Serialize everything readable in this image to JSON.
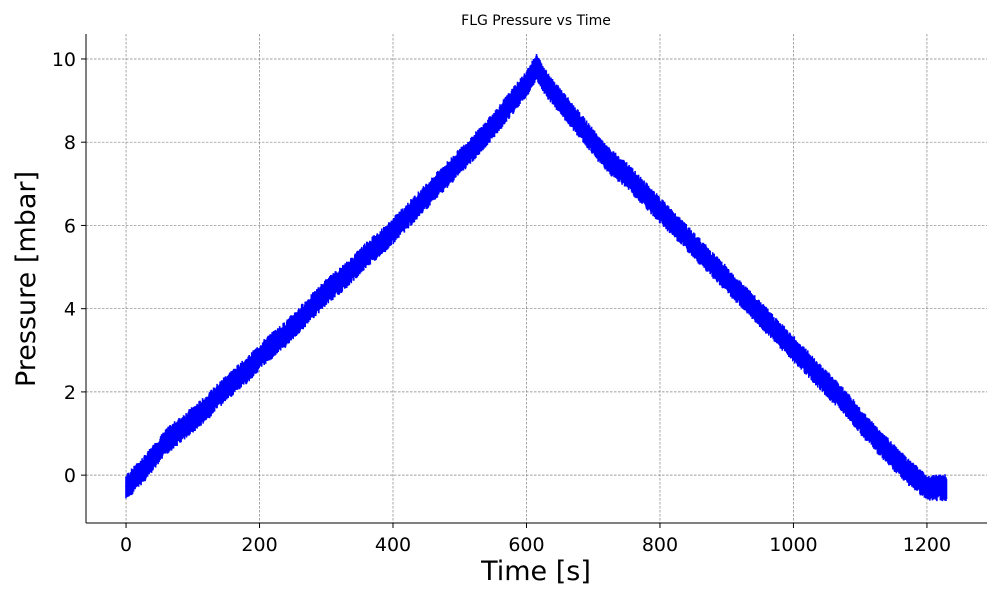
{
  "chart_data": {
    "type": "line",
    "title": "FLG Pressure vs Time",
    "xlabel": "Time [s]",
    "ylabel": "Pressure [mbar]",
    "xlim": [
      -60,
      1290
    ],
    "ylim": [
      -1.15,
      10.6
    ],
    "xticks": [
      0,
      200,
      400,
      600,
      800,
      1000,
      1200
    ],
    "xtick_labels": [
      "0",
      "200",
      "400",
      "600",
      "800",
      "1000",
      "1200"
    ],
    "yticks": [
      0,
      2,
      4,
      6,
      8,
      10
    ],
    "ytick_labels": [
      "0",
      "2",
      "4",
      "6",
      "8",
      "10"
    ],
    "grid": true,
    "legend": "none",
    "series": [
      {
        "color": "#0000ff",
        "x": [
          0,
          30,
          60,
          90,
          120,
          150,
          180,
          210,
          240,
          270,
          300,
          330,
          360,
          390,
          420,
          450,
          480,
          510,
          540,
          570,
          600,
          615,
          630,
          660,
          690,
          720,
          750,
          780,
          810,
          840,
          870,
          900,
          930,
          960,
          990,
          1020,
          1050,
          1080,
          1110,
          1140,
          1170,
          1200,
          1230
        ],
        "y": [
          -0.3,
          0.2,
          0.8,
          1.2,
          1.6,
          2.1,
          2.5,
          3.0,
          3.4,
          3.9,
          4.4,
          4.8,
          5.3,
          5.7,
          6.2,
          6.7,
          7.2,
          7.7,
          8.2,
          8.8,
          9.4,
          9.8,
          9.4,
          8.8,
          8.2,
          7.6,
          7.2,
          6.7,
          6.2,
          5.7,
          5.2,
          4.7,
          4.2,
          3.7,
          3.2,
          2.7,
          2.2,
          1.7,
          1.1,
          0.6,
          0.1,
          -0.3,
          -0.3
        ],
        "band": [
          0.65,
          0.65,
          0.65,
          0.65,
          0.65,
          0.65,
          0.65,
          0.65,
          0.65,
          0.65,
          0.65,
          0.65,
          0.65,
          0.65,
          0.65,
          0.65,
          0.65,
          0.65,
          0.65,
          0.65,
          0.65,
          0.65,
          0.65,
          0.65,
          0.65,
          0.65,
          0.65,
          0.65,
          0.65,
          0.65,
          0.65,
          0.65,
          0.65,
          0.65,
          0.65,
          0.65,
          0.65,
          0.65,
          0.65,
          0.65,
          0.65,
          0.65,
          0.65
        ]
      }
    ]
  }
}
